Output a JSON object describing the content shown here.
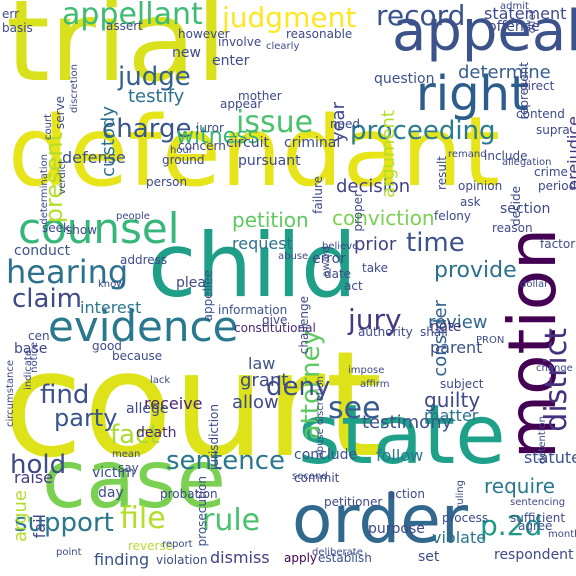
{
  "colors": {
    "background": "#ffffff",
    "palette": [
      "#440154",
      "#472c7a",
      "#3b518b",
      "#2c718e",
      "#21908d",
      "#27ad81",
      "#5cc863",
      "#aadc32",
      "#fde725"
    ]
  },
  "words": [
    {
      "id": "court",
      "text": "court",
      "color": "#dde318"
    },
    {
      "id": "trial",
      "text": "trial",
      "color": "#d9e11d"
    },
    {
      "id": "defendant",
      "text": "defendant",
      "color": "#e7e419"
    },
    {
      "id": "child",
      "text": "child",
      "color": "#1f9f88"
    },
    {
      "id": "state",
      "text": "state",
      "color": "#1fa088"
    },
    {
      "id": "case",
      "text": "case",
      "color": "#7ad151"
    },
    {
      "id": "motion",
      "text": "motion",
      "color": "#440154"
    },
    {
      "id": "order",
      "text": "order",
      "color": "#31688e"
    },
    {
      "id": "appeal",
      "text": "appeal",
      "color": "#3b528b"
    },
    {
      "id": "counsel",
      "text": "counsel",
      "color": "#35b779"
    },
    {
      "id": "evidence",
      "text": "evidence",
      "color": "#2a788e"
    },
    {
      "id": "hearing",
      "text": "hearing",
      "color": "#2c728e"
    },
    {
      "id": "right",
      "text": "right",
      "color": "#2c5e8d"
    },
    {
      "id": "district",
      "text": "district",
      "color": "#46317e"
    },
    {
      "id": "appellant",
      "text": "appellant",
      "color": "#3fbc73"
    },
    {
      "id": "issue",
      "text": "issue",
      "color": "#4ac16d"
    },
    {
      "id": "judgment",
      "text": "judgment",
      "color": "#fde725"
    },
    {
      "id": "record",
      "text": "record",
      "color": "#3b528b"
    },
    {
      "id": "jury",
      "text": "jury",
      "color": "#443983"
    },
    {
      "id": "file",
      "text": "file",
      "color": "#b5de2b"
    },
    {
      "id": "rule",
      "text": "rule",
      "color": "#4ac16d"
    },
    {
      "id": "attorney",
      "text": "attorney",
      "color": "#5ec962"
    },
    {
      "id": "see",
      "text": "see",
      "color": "#365d8d"
    },
    {
      "id": "p2d",
      "text": "p.2d",
      "color": "#1f9a8a"
    },
    {
      "id": "sentence",
      "text": "sentence",
      "color": "#2a788e"
    },
    {
      "id": "proceeding",
      "text": "proceeding",
      "color": "#287c8e"
    },
    {
      "id": "judge",
      "text": "judge",
      "color": "#355f8d"
    },
    {
      "id": "charge",
      "text": "charge",
      "color": "#39568c"
    },
    {
      "id": "claim",
      "text": "claim",
      "color": "#3e4989"
    },
    {
      "id": "find",
      "text": "find",
      "color": "#3b528b"
    },
    {
      "id": "support",
      "text": "support",
      "color": "#2a788e"
    },
    {
      "id": "hold",
      "text": "hold",
      "color": "#3e4a89"
    },
    {
      "id": "fact",
      "text": "fact",
      "color": "#aadc32"
    },
    {
      "id": "time",
      "text": "time",
      "color": "#3b528b"
    },
    {
      "id": "deny",
      "text": "deny",
      "color": "#3e4a89"
    },
    {
      "id": "party",
      "text": "party",
      "color": "#39568c"
    },
    {
      "id": "present",
      "text": "present",
      "color": "#b5de2b"
    },
    {
      "id": "petition",
      "text": "petition",
      "color": "#5ec962"
    },
    {
      "id": "conviction",
      "text": "conviction",
      "color": "#7ad151"
    },
    {
      "id": "provide",
      "text": "provide",
      "color": "#2d708e"
    },
    {
      "id": "determine",
      "text": "determine",
      "color": "#355f8d"
    },
    {
      "id": "statement",
      "text": "statement",
      "color": "#3e4a89"
    },
    {
      "id": "decision",
      "text": "decision",
      "color": "#404387"
    },
    {
      "id": "witness",
      "text": "witness",
      "color": "#37b878"
    },
    {
      "id": "custody",
      "text": "custody",
      "color": "#2c728e"
    },
    {
      "id": "argument",
      "text": "argument",
      "color": "#b5de2b"
    },
    {
      "id": "year",
      "text": "year",
      "color": "#3e4a89"
    },
    {
      "id": "testify",
      "text": "testify",
      "color": "#2c728e"
    },
    {
      "id": "review",
      "text": "review",
      "color": "#31688e"
    },
    {
      "id": "consider",
      "text": "consider",
      "color": "#34618d"
    },
    {
      "id": "guilty",
      "text": "guilty",
      "color": "#3e4a89"
    },
    {
      "id": "testimony",
      "text": "testimony",
      "color": "#3b528b"
    },
    {
      "id": "prejudice",
      "text": "prejudice",
      "color": "#46327e"
    },
    {
      "id": "require",
      "text": "require",
      "color": "#2a788e"
    },
    {
      "id": "argue",
      "text": "argue",
      "color": "#b5de2b"
    },
    {
      "id": "fail",
      "text": "fail",
      "color": "#3e4a89"
    },
    {
      "id": "raise",
      "text": "raise",
      "color": "#443983"
    },
    {
      "id": "conduct",
      "text": "conduct",
      "color": "#3b528b"
    },
    {
      "id": "interest",
      "text": "interest",
      "color": "#2a788e"
    },
    {
      "id": "request",
      "text": "request",
      "color": "#2c728e"
    },
    {
      "id": "prior",
      "text": "prior",
      "color": "#424086"
    },
    {
      "id": "law",
      "text": "law",
      "color": "#3b528b"
    },
    {
      "id": "grant",
      "text": "grant",
      "color": "#3e4a89"
    },
    {
      "id": "allow",
      "text": "allow",
      "color": "#3e4a89"
    },
    {
      "id": "receive",
      "text": "receive",
      "color": "#482475"
    },
    {
      "id": "allege",
      "text": "allege",
      "color": "#3e4a89"
    },
    {
      "id": "death",
      "text": "death",
      "color": "#482878"
    },
    {
      "id": "conclude",
      "text": "conclude",
      "color": "#3b528b"
    },
    {
      "id": "follow",
      "text": "follow",
      "color": "#2a788e"
    },
    {
      "id": "statute",
      "text": "statute",
      "color": "#3b528b"
    },
    {
      "id": "matter",
      "text": "matter",
      "color": "#2c728e"
    },
    {
      "id": "parent",
      "text": "parent",
      "color": "#3b528b"
    },
    {
      "id": "note",
      "text": "note",
      "color": "#46337f"
    },
    {
      "id": "dismiss",
      "text": "dismiss",
      "color": "#424086"
    },
    {
      "id": "apply",
      "text": "apply",
      "color": "#440154"
    },
    {
      "id": "establish",
      "text": "establish",
      "color": "#3b528b"
    },
    {
      "id": "set",
      "text": "set",
      "color": "#3e4a89"
    },
    {
      "id": "purpose",
      "text": "purpose",
      "color": "#3e4a89"
    },
    {
      "id": "violate",
      "text": "violate",
      "color": "#2c728e"
    },
    {
      "id": "respondent",
      "text": "respondent",
      "color": "#3e4a89"
    },
    {
      "id": "finding",
      "text": "finding",
      "color": "#3b528b"
    },
    {
      "id": "violation",
      "text": "violation",
      "color": "#3e4a89"
    },
    {
      "id": "reverse",
      "text": "reverse",
      "color": "#b5de2b"
    },
    {
      "id": "victim",
      "text": "victim",
      "color": "#3b528b"
    },
    {
      "id": "day",
      "text": "day",
      "color": "#3e4a89"
    },
    {
      "id": "petitioner",
      "text": "petitioner",
      "color": "#3e4a89"
    },
    {
      "id": "agree",
      "text": "agree",
      "color": "#3b528b"
    },
    {
      "id": "commit",
      "text": "commit",
      "color": "#3e4a89"
    },
    {
      "id": "prosecution",
      "text": "prosecution",
      "color": "#3b528b"
    },
    {
      "id": "probation",
      "text": "probation",
      "color": "#3e4a89"
    },
    {
      "id": "criminal",
      "text": "criminal",
      "color": "#3e4a89"
    },
    {
      "id": "circuit",
      "text": "circuit",
      "color": "#3e4a89"
    },
    {
      "id": "defense",
      "text": "defense",
      "color": "#3b528b"
    },
    {
      "id": "base",
      "text": "base",
      "color": "#3e4a89"
    },
    {
      "id": "jurisdiction",
      "text": "jurisdiction",
      "color": "#3e4a89"
    },
    {
      "id": "constitutional",
      "text": "constitutional",
      "color": "#482878"
    },
    {
      "id": "information",
      "text": "information",
      "color": "#3b528b"
    },
    {
      "id": "authority",
      "text": "authority",
      "color": "#3e4a89"
    },
    {
      "id": "shall",
      "text": "shall",
      "color": "#3e4a89"
    },
    {
      "id": "address",
      "text": "address",
      "color": "#3e4a89"
    },
    {
      "id": "plea",
      "text": "plea",
      "color": "#3e4a89"
    },
    {
      "id": "appellee",
      "text": "appellee",
      "color": "#3b528b"
    },
    {
      "id": "new",
      "text": "new",
      "color": "#3e4a89"
    },
    {
      "id": "enter",
      "text": "enter",
      "color": "#3e4a89"
    },
    {
      "id": "involve",
      "text": "involve",
      "color": "#3e4a89"
    },
    {
      "id": "however",
      "text": "however",
      "color": "#3e4a89"
    },
    {
      "id": "assert",
      "text": "assert",
      "color": "#3e4a89"
    },
    {
      "id": "offense",
      "text": "offense",
      "color": "#3e4a89"
    },
    {
      "id": "question",
      "text": "question",
      "color": "#3b528b"
    },
    {
      "id": "error",
      "text": "error",
      "color": "#3e4a89"
    },
    {
      "id": "date",
      "text": "date",
      "color": "#3e4a89"
    },
    {
      "id": "act",
      "text": "act",
      "color": "#3e4a89"
    },
    {
      "id": "need",
      "text": "need",
      "color": "#3e4a89"
    },
    {
      "id": "pursuant",
      "text": "pursuant",
      "color": "#3e4a89"
    },
    {
      "id": "ground",
      "text": "ground",
      "color": "#3e4a89"
    },
    {
      "id": "person",
      "text": "person",
      "color": "#3e4a89"
    },
    {
      "id": "section",
      "text": "section",
      "color": "#3e4a89"
    },
    {
      "id": "period",
      "text": "period",
      "color": "#3e4a89"
    },
    {
      "id": "crime",
      "text": "crime",
      "color": "#3e4a89"
    },
    {
      "id": "felony",
      "text": "felony",
      "color": "#3e4a89"
    },
    {
      "id": "opinion",
      "text": "opinion",
      "color": "#3e4a89"
    },
    {
      "id": "factor",
      "text": "factor",
      "color": "#3e4a89"
    },
    {
      "id": "result",
      "text": "result",
      "color": "#3e4a89"
    },
    {
      "id": "ask",
      "text": "ask",
      "color": "#3e4a89"
    },
    {
      "id": "decide",
      "text": "decide",
      "color": "#3e4a89"
    },
    {
      "id": "proper",
      "text": "proper",
      "color": "#3e4a89"
    },
    {
      "id": "failure",
      "text": "failure",
      "color": "#3e4a89"
    },
    {
      "id": "mother",
      "text": "mother",
      "color": "#3e4a89"
    },
    {
      "id": "appear",
      "text": "appear",
      "color": "#3e4a89"
    },
    {
      "id": "direct",
      "text": "direct",
      "color": "#3e4a89"
    },
    {
      "id": "represent",
      "text": "represent",
      "color": "#3e4a89"
    },
    {
      "id": "contend",
      "text": "contend",
      "color": "#3e4a89"
    },
    {
      "id": "supra",
      "text": "supra",
      "color": "#3e4a89"
    },
    {
      "id": "reasonable",
      "text": "reasonable",
      "color": "#3e4a89"
    },
    {
      "id": "basis",
      "text": "basis",
      "color": "#3e4a89"
    },
    {
      "id": "err",
      "text": "err",
      "color": "#3e4a89"
    },
    {
      "id": "serve",
      "text": "serve",
      "color": "#3e4a89"
    },
    {
      "id": "discretion",
      "text": "discretion",
      "color": "#3e4a89"
    },
    {
      "id": "determination",
      "text": "determination",
      "color": "#3e4a89"
    },
    {
      "id": "verdict",
      "text": "verdict",
      "color": "#3e4a89"
    },
    {
      "id": "hour",
      "text": "hour",
      "color": "#3e4a89"
    },
    {
      "id": "concern",
      "text": "concern",
      "color": "#3e4a89"
    },
    {
      "id": "seek",
      "text": "seek",
      "color": "#3e4a89"
    },
    {
      "id": "show",
      "text": "show",
      "color": "#3e4a89"
    },
    {
      "id": "people",
      "text": "people",
      "color": "#3e4a89"
    },
    {
      "id": "abuse",
      "text": "abuse",
      "color": "#3e4a89"
    },
    {
      "id": "abuse_discretion",
      "text": "abuse discretion",
      "color": "#3e4a89"
    },
    {
      "id": "affirm",
      "text": "affirm",
      "color": "#3e4a89"
    },
    {
      "id": "impose",
      "text": "impose",
      "color": "#3e4a89"
    },
    {
      "id": "subject",
      "text": "subject",
      "color": "#3e4a89"
    },
    {
      "id": "because",
      "text": "because",
      "color": "#3e4a89"
    },
    {
      "id": "good",
      "text": "good",
      "color": "#3e4a89"
    },
    {
      "id": "notice",
      "text": "notice",
      "color": "#3e4a89"
    },
    {
      "id": "indicate",
      "text": "indicate",
      "color": "#3e4a89"
    },
    {
      "id": "circumstance",
      "text": "circumstance",
      "color": "#3e4a89"
    },
    {
      "id": "action",
      "text": "action",
      "color": "#3e4a89"
    },
    {
      "id": "sufficient",
      "text": "sufficient",
      "color": "#3e4a89"
    },
    {
      "id": "process",
      "text": "process",
      "color": "#3e4a89"
    },
    {
      "id": "report",
      "text": "report",
      "color": "#3e4a89"
    },
    {
      "id": "second",
      "text": "second",
      "color": "#3e4a89"
    },
    {
      "id": "say",
      "text": "say",
      "color": "#3e4a89"
    },
    {
      "id": "sentencing",
      "text": "sentencing",
      "color": "#3e4a89"
    },
    {
      "id": "month",
      "text": "month",
      "color": "#3e4a89"
    },
    {
      "id": "point",
      "text": "point",
      "color": "#3e4a89"
    },
    {
      "id": "admit",
      "text": "admit",
      "color": "#3e4a89"
    },
    {
      "id": "offer",
      "text": "offer",
      "color": "#3e4a89"
    },
    {
      "id": "include",
      "text": "include",
      "color": "#3e4a89"
    },
    {
      "id": "allegation",
      "text": "allegation",
      "color": "#3e4a89"
    },
    {
      "id": "remand",
      "text": "remand",
      "color": "#3e4a89"
    },
    {
      "id": "believe",
      "text": "believe",
      "color": "#3e4a89"
    },
    {
      "id": "award",
      "text": "award",
      "color": "#3e4a89"
    },
    {
      "id": "reason",
      "text": "reason",
      "color": "#3e4a89"
    },
    {
      "id": "change",
      "text": "change",
      "color": "#3e4a89"
    },
    {
      "id": "pron",
      "text": "PRON",
      "color": "#3e4a89"
    },
    {
      "id": "challenge",
      "text": "challenge",
      "color": "#3e4a89"
    },
    {
      "id": "give",
      "text": "give",
      "color": "#3e4a89"
    },
    {
      "id": "take",
      "text": "take",
      "color": "#3e4a89"
    },
    {
      "id": "juror",
      "text": "juror",
      "color": "#3e4a89"
    },
    {
      "id": "know",
      "text": "know",
      "color": "#3e4a89"
    },
    {
      "id": "clearly",
      "text": "clearly",
      "color": "#3e4a89"
    },
    {
      "id": "court_small",
      "text": "court",
      "color": "#3e4a89"
    },
    {
      "id": "deliberate",
      "text": "deliberate",
      "color": "#3e4a89"
    },
    {
      "id": "dollar",
      "text": "dollar",
      "color": "#3e4a89"
    },
    {
      "id": "mean",
      "text": "mean",
      "color": "#3e4a89"
    },
    {
      "id": "lack",
      "text": "lack",
      "color": "#3e4a89"
    },
    {
      "id": "ruling",
      "text": "ruling",
      "color": "#3e4a89"
    },
    {
      "id": "cen",
      "text": "cen",
      "color": "#3e4a89"
    },
    {
      "id": "detention",
      "text": "detention",
      "color": "#3e4a89"
    }
  ]
}
